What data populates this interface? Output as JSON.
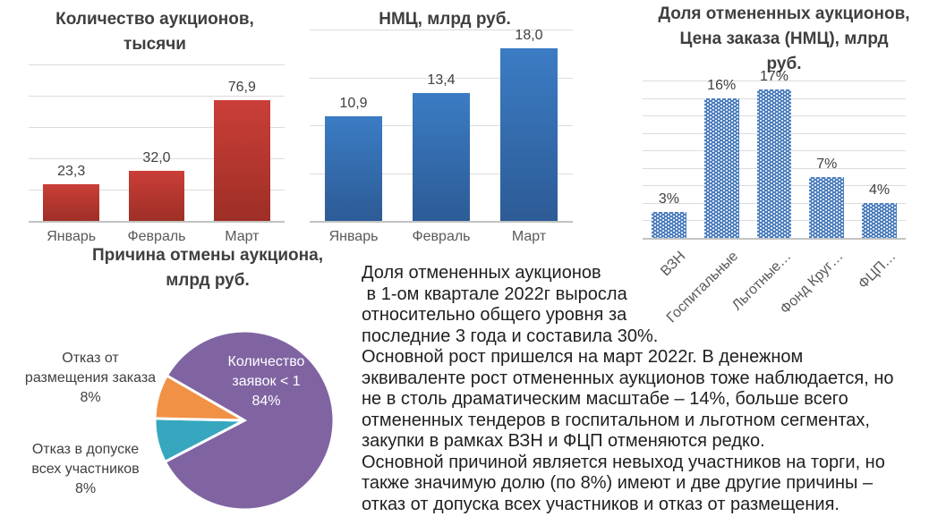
{
  "chart_data": [
    {
      "id": "auctions",
      "type": "bar",
      "title": "Количество аукционов, тысячи",
      "title_lines": [
        "Количество аукционов,",
        "тысячи"
      ],
      "categories": [
        "Январь",
        "Февраль",
        "Март"
      ],
      "values": [
        23.3,
        32.0,
        76.9
      ],
      "value_labels": [
        "23,3",
        "32,0",
        "76,9"
      ],
      "ylabel": "",
      "ylim": [
        0,
        100
      ],
      "grid_step": 20,
      "grid": true,
      "bar_color_top": "#ca3e38",
      "bar_color_bottom": "#9e2f26"
    },
    {
      "id": "nmc",
      "type": "bar",
      "title": "НМЦ, млрд руб.",
      "title_lines": [
        "НМЦ, млрд руб."
      ],
      "categories": [
        "Январь",
        "Февраль",
        "Март"
      ],
      "values": [
        10.9,
        13.4,
        18.0
      ],
      "value_labels": [
        "10,9",
        "13,4",
        "18,0"
      ],
      "ylabel": "",
      "ylim": [
        0,
        20
      ],
      "grid_step": 5,
      "grid": true,
      "bar_color_top": "#3b7cc4",
      "bar_color_bottom": "#2d5b96"
    },
    {
      "id": "cancelled_share",
      "type": "bar",
      "title": "Доля отмененных аукционов, Цена заказа (НМЦ), млрд руб.",
      "title_lines": [
        "Доля отмененных аукционов,",
        "Цена заказа (НМЦ), млрд",
        "руб."
      ],
      "categories": [
        "ВЗН",
        "Госпитальные",
        "Льготные…",
        "Фонд Круг…",
        "ФЦП…"
      ],
      "values": [
        3,
        16,
        17,
        7,
        4
      ],
      "value_labels": [
        "3%",
        "16%",
        "17%",
        "7%",
        "4%"
      ],
      "ylabel": "",
      "ylim": [
        0,
        18
      ],
      "grid_step": 2,
      "grid": true,
      "bar_color": "#4d7ebd",
      "bar_pattern": "white-dots",
      "rotated_labels": true
    },
    {
      "id": "cancel_reason",
      "type": "pie",
      "title": "Причина отмены аукциона, млрд руб.",
      "title_lines": [
        "Причина отмены аукциона,",
        "млрд руб."
      ],
      "slices": [
        {
          "label": "Количество заявок < 1",
          "pct": 84,
          "pct_label": "84%",
          "color": "#8064a2",
          "label_position": "inside"
        },
        {
          "label": "Отказ от размещения заказа",
          "pct": 8,
          "pct_label": "8%",
          "color": "#f09146",
          "label_position": "outside-left-upper"
        },
        {
          "label": "Отказ в допуске всех участников",
          "pct": 8,
          "pct_label": "8%",
          "color": "#36a7be",
          "label_position": "outside-left-lower"
        }
      ]
    }
  ],
  "commentary": {
    "lines": [
      "Доля отмененных аукционов",
      " в 1-ом квартале 2022г выросла",
      "относительно общего уровня за",
      "последние 3 года и составила 30%.",
      "Основной рост пришелся на март 2022г. В денежном",
      "эквиваленте рост отмененных аукционов тоже наблюдается, но",
      "не в столь драматическим масштабе – 14%, больше всего",
      "отмененных тендеров в госпитальном и льготном сегментах,",
      "закупки в рамках ВЗН и ФЦП отменяются редко.",
      "Основной причиной является невыход участников на торги, но",
      "также значимую долю (по 8%) имеют и две другие причины –",
      "отказ от допуска всех участников и отказ от размещения."
    ]
  }
}
